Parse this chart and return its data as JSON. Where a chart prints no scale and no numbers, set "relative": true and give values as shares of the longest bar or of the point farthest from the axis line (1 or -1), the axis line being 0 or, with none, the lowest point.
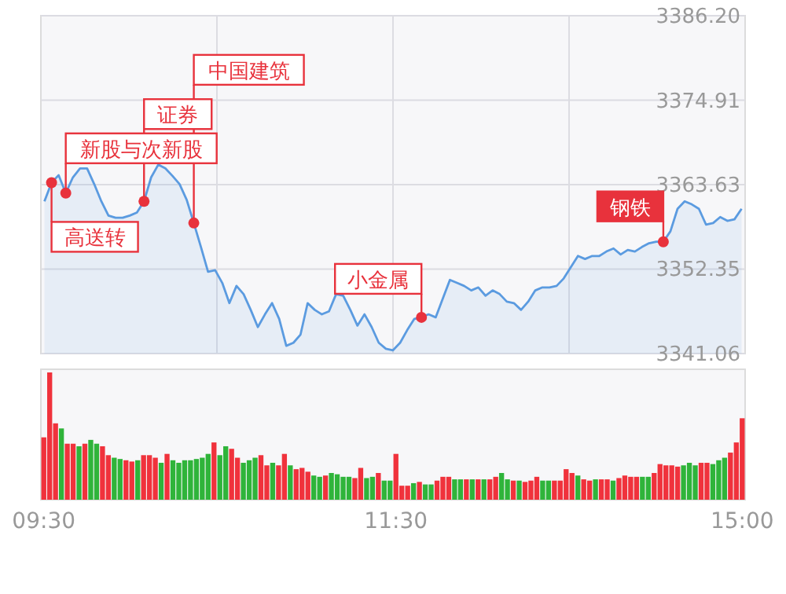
{
  "chart_data": [
    {
      "type": "area",
      "categories": [
        null,
        null,
        null,
        null,
        null,
        null,
        null,
        null,
        null,
        null,
        null,
        null,
        null,
        null,
        null,
        null,
        null,
        null,
        null,
        null,
        null,
        null,
        null,
        null,
        null,
        null,
        null,
        null,
        null,
        null,
        null,
        null,
        null,
        null,
        null,
        null,
        null,
        null,
        null,
        null,
        null,
        null,
        null,
        null,
        null,
        null,
        null,
        null,
        null,
        null,
        null,
        null,
        null,
        null,
        null,
        null,
        null,
        null,
        null,
        null,
        null,
        null,
        null,
        null,
        null,
        null,
        null,
        null,
        null,
        null,
        null,
        null,
        null,
        null,
        null,
        null,
        null,
        null,
        null,
        null,
        null,
        null,
        null,
        null,
        null,
        null,
        null,
        null,
        null,
        null,
        null,
        null,
        null,
        null,
        null,
        null,
        null,
        null,
        null
      ],
      "series": [
        {
          "color": "#5b9be0",
          "values": [
            3361.4,
            3363.9,
            3364.9,
            3362.5,
            3364.6,
            3365.8,
            3365.8,
            3363.7,
            3361.4,
            3359.5,
            3359.2,
            3359.2,
            3359.5,
            3359.9,
            3361.4,
            3364.6,
            3366.3,
            3365.8,
            3364.8,
            3363.7,
            3361.6,
            3358.5,
            3355.3,
            3352.0,
            3352.2,
            3350.5,
            3347.8,
            3350.1,
            3349.0,
            3346.9,
            3344.6,
            3346.3,
            3347.8,
            3345.7,
            3342.1,
            3342.5,
            3343.6,
            3347.8,
            3346.9,
            3346.3,
            3346.7,
            3349.0,
            3348.8,
            3346.9,
            3344.8,
            3346.3,
            3344.6,
            3342.5,
            3341.7,
            3341.5,
            3342.5,
            3344.2,
            3345.7,
            3345.9,
            3346.3,
            3345.9,
            3348.4,
            3350.9,
            3350.5,
            3350.1,
            3349.5,
            3349.9,
            3348.8,
            3349.5,
            3349.0,
            3348.0,
            3347.8,
            3346.9,
            3348.0,
            3349.5,
            3349.9,
            3349.9,
            3350.1,
            3351.1,
            3352.6,
            3354.1,
            3353.7,
            3354.1,
            3354.1,
            3354.7,
            3355.1,
            3354.3,
            3354.9,
            3354.7,
            3355.3,
            3355.8,
            3356.0,
            3356.0,
            3357.4,
            3360.4,
            3361.4,
            3361.0,
            3360.4,
            3358.3,
            3358.5,
            3359.3,
            3358.8,
            3359.0,
            3360.4
          ]
        },
        {
          "type": "scatter",
          "color": "#e8323c",
          "values": [
            null,
            3363.9,
            null,
            3362.5,
            null,
            null,
            null,
            null,
            null,
            null,
            null,
            null,
            null,
            null,
            3361.4,
            null,
            null,
            null,
            null,
            null,
            null,
            3358.5,
            null,
            null,
            null,
            null,
            null,
            null,
            null,
            null,
            null,
            null,
            null,
            null,
            null,
            null,
            null,
            null,
            null,
            null,
            null,
            null,
            null,
            null,
            null,
            null,
            null,
            null,
            null,
            null,
            null,
            null,
            null,
            3345.9,
            null,
            null,
            null,
            null,
            null,
            null,
            null,
            null,
            null,
            null,
            null,
            null,
            null,
            null,
            null,
            null,
            null,
            null,
            null,
            null,
            null,
            null,
            null,
            null,
            null,
            null,
            null,
            null,
            null,
            null,
            null,
            null,
            null,
            3356.0,
            null,
            null,
            null,
            null,
            null,
            null,
            null,
            null,
            null,
            null,
            null
          ]
        }
      ],
      "ylim": [
        3341.06,
        3386.2
      ],
      "yticks": [
        3341.06,
        3352.35,
        3363.63,
        3374.91,
        {
          "value": 3386.2,
          "label": "3386.20"
        }
      ],
      "tick_labels": "y",
      "grid": true,
      "annotations": [
        "高送转",
        "新股与次新股",
        "证券",
        "中国建筑",
        "小金属",
        "钢铁"
      ]
    },
    {
      "type": "bar",
      "relative": true,
      "categories": [
        "09:30",
        null,
        null,
        null,
        null,
        null,
        null,
        null,
        null,
        null,
        null,
        null,
        null,
        null,
        null,
        null,
        null,
        null,
        null,
        null,
        null,
        null,
        null,
        null,
        null,
        null,
        null,
        null,
        null,
        null,
        null,
        null,
        null,
        null,
        null,
        null,
        null,
        null,
        null,
        null,
        null,
        null,
        null,
        null,
        null,
        null,
        null,
        null,
        null,
        null,
        null,
        null,
        null,
        null,
        null,
        null,
        null,
        null,
        null,
        null,
        "11:30",
        null,
        null,
        null,
        null,
        null,
        null,
        null,
        null,
        null,
        null,
        null,
        null,
        null,
        null,
        null,
        null,
        null,
        null,
        null,
        null,
        null,
        null,
        null,
        null,
        null,
        null,
        null,
        null,
        null,
        null,
        null,
        null,
        null,
        null,
        null,
        null,
        null,
        null,
        null,
        null,
        null,
        null,
        null,
        null,
        null,
        null,
        null,
        null,
        null,
        null,
        null,
        null,
        null,
        null,
        null,
        null,
        null,
        null,
        "15:00"
      ],
      "values": [
        0.49,
        1.0,
        0.6,
        0.56,
        0.44,
        0.44,
        0.42,
        0.44,
        0.47,
        0.44,
        0.42,
        0.35,
        0.33,
        0.32,
        0.31,
        0.3,
        0.31,
        0.35,
        0.35,
        0.33,
        0.29,
        0.36,
        0.31,
        0.29,
        0.31,
        0.31,
        0.32,
        0.33,
        0.36,
        0.45,
        0.35,
        0.42,
        0.4,
        0.33,
        0.29,
        0.31,
        0.33,
        0.35,
        0.27,
        0.29,
        0.27,
        0.36,
        0.27,
        0.24,
        0.25,
        0.22,
        0.19,
        0.18,
        0.19,
        0.21,
        0.2,
        0.18,
        0.18,
        0.17,
        0.25,
        0.17,
        0.18,
        0.21,
        0.15,
        0.15,
        0.36,
        0.11,
        0.11,
        0.13,
        0.14,
        0.12,
        0.12,
        0.15,
        0.18,
        0.18,
        0.16,
        0.16,
        0.16,
        0.16,
        0.16,
        0.16,
        0.16,
        0.18,
        0.21,
        0.16,
        0.15,
        0.15,
        0.14,
        0.15,
        0.18,
        0.15,
        0.15,
        0.15,
        0.15,
        0.24,
        0.21,
        0.19,
        0.16,
        0.15,
        0.16,
        0.16,
        0.16,
        0.15,
        0.17,
        0.19,
        0.18,
        0.18,
        0.18,
        0.18,
        0.21,
        0.28,
        0.27,
        0.27,
        0.26,
        0.27,
        0.29,
        0.27,
        0.29,
        0.29,
        0.28,
        0.31,
        0.33,
        0.37,
        0.45,
        0.64
      ],
      "colors": [
        "#f0323c",
        "#f0323c",
        "#f0323c",
        "#2fb43a",
        "#f0323c",
        "#f0323c",
        "#2fb43a",
        "#f0323c",
        "#2fb43a",
        "#2fb43a",
        "#f0323c",
        "#f0323c",
        "#2fb43a",
        "#2fb43a",
        "#f0323c",
        "#f0323c",
        "#2fb43a",
        "#f0323c",
        "#f0323c",
        "#f0323c",
        "#2fb43a",
        "#f0323c",
        "#2fb43a",
        "#2fb43a",
        "#2fb43a",
        "#2fb43a",
        "#2fb43a",
        "#2fb43a",
        "#2fb43a",
        "#f0323c",
        "#2fb43a",
        "#2fb43a",
        "#f0323c",
        "#f0323c",
        "#2fb43a",
        "#2fb43a",
        "#2fb43a",
        "#f0323c",
        "#f0323c",
        "#2fb43a",
        "#f0323c",
        "#f0323c",
        "#2fb43a",
        "#f0323c",
        "#f0323c",
        "#f0323c",
        "#2fb43a",
        "#2fb43a",
        "#f0323c",
        "#2fb43a",
        "#2fb43a",
        "#2fb43a",
        "#2fb43a",
        "#f0323c",
        "#f0323c",
        "#2fb43a",
        "#2fb43a",
        "#f0323c",
        "#2fb43a",
        "#2fb43a",
        "#f0323c",
        "#f0323c",
        "#f0323c",
        "#2fb43a",
        "#f0323c",
        "#2fb43a",
        "#2fb43a",
        "#f0323c",
        "#f0323c",
        "#f0323c",
        "#2fb43a",
        "#2fb43a",
        "#f0323c",
        "#2fb43a",
        "#f0323c",
        "#2fb43a",
        "#f0323c",
        "#f0323c",
        "#2fb43a",
        "#2fb43a",
        "#f0323c",
        "#2fb43a",
        "#f0323c",
        "#f0323c",
        "#f0323c",
        "#2fb43a",
        "#2fb43a",
        "#f0323c",
        "#f0323c",
        "#f0323c",
        "#f0323c",
        "#2fb43a",
        "#f0323c",
        "#f0323c",
        "#2fb43a",
        "#f0323c",
        "#f0323c",
        "#2fb43a",
        "#f0323c",
        "#f0323c",
        "#f0323c",
        "#f0323c",
        "#2fb43a",
        "#2fb43a",
        "#f0323c",
        "#f0323c",
        "#f0323c",
        "#f0323c",
        "#f0323c",
        "#2fb43a",
        "#2fb43a",
        "#2fb43a",
        "#f0323c",
        "#f0323c",
        "#2fb43a",
        "#2fb43a",
        "#2fb43a",
        "#f0323c",
        "#f0323c",
        "#f0323c"
      ],
      "tick_labels": "x"
    }
  ]
}
